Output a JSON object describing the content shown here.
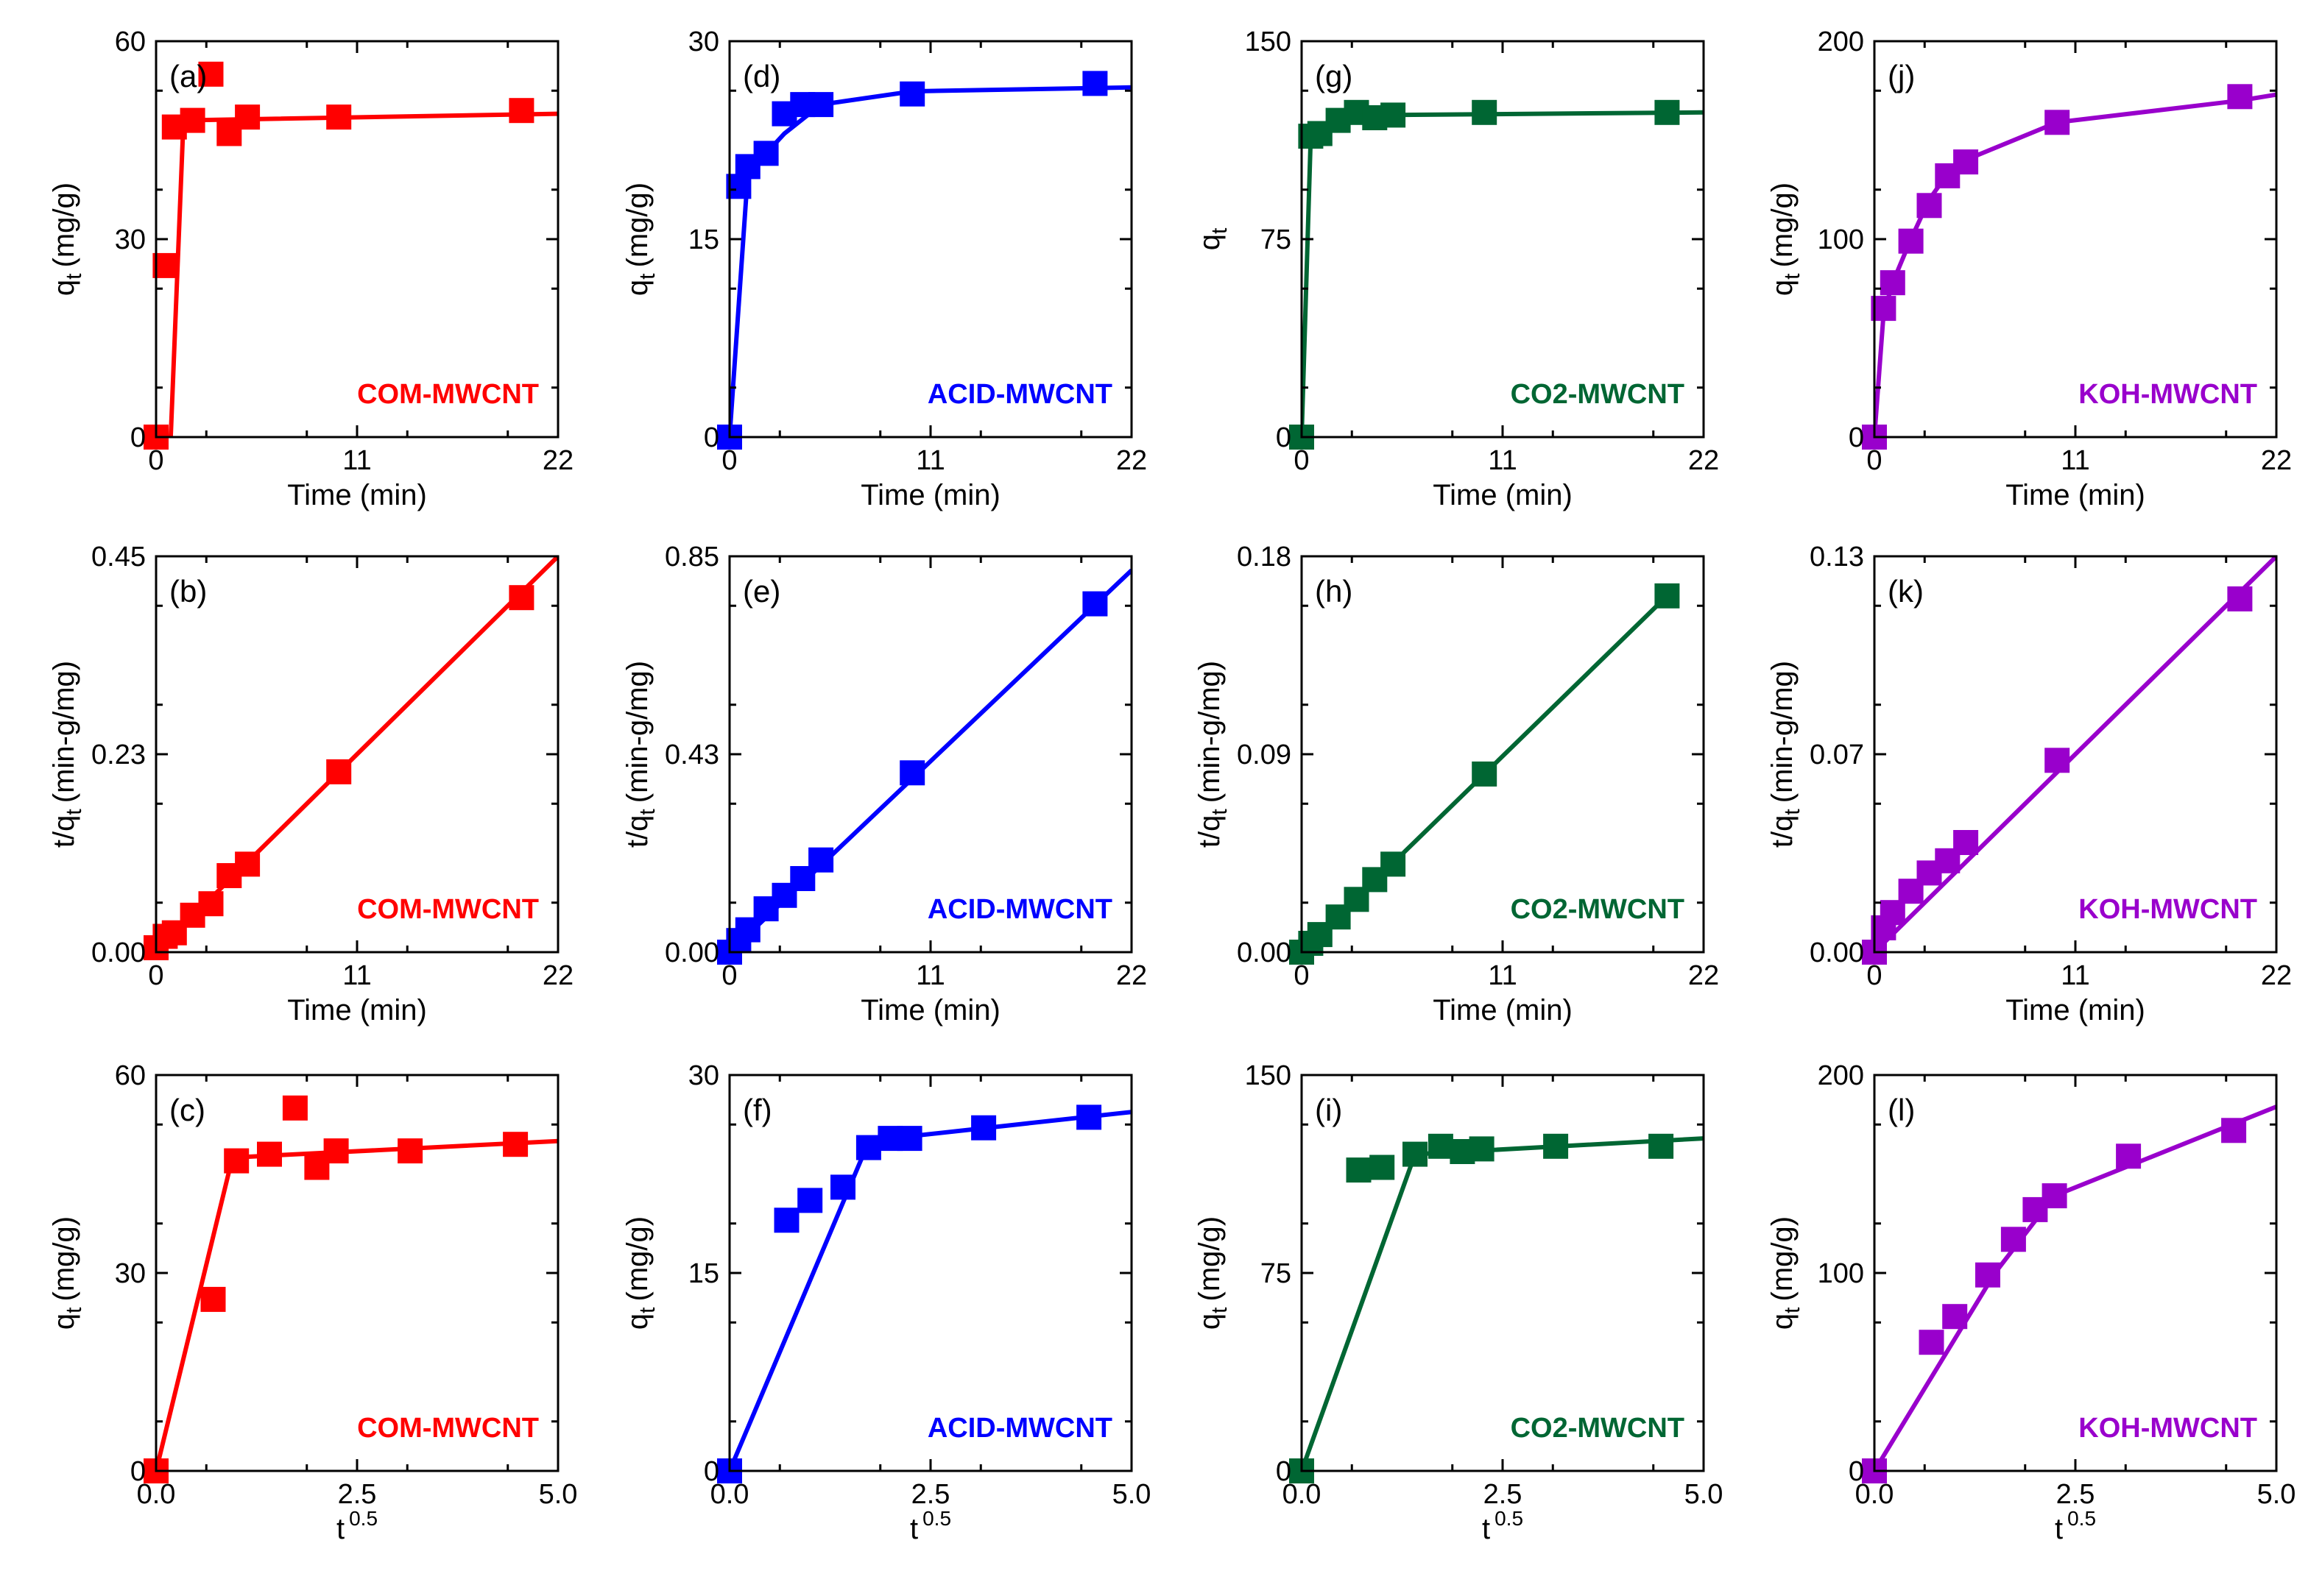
{
  "chart_data": [
    {
      "id": "a",
      "type": "scatter",
      "panel_label": "(a)",
      "series_label": "COM-MWCNT",
      "color": "#ff0000",
      "xlabel": "Time (min)",
      "ylabel": "q",
      "ylabel_sub": "t",
      "ylabel_unit": "(mg/g)",
      "xlim": [
        0,
        22
      ],
      "ylim": [
        0,
        60
      ],
      "xticks": [
        "0",
        "11",
        "22"
      ],
      "yticks": [
        "0",
        "30",
        "60"
      ],
      "points": [
        [
          0,
          0
        ],
        [
          0.5,
          26
        ],
        [
          1,
          47
        ],
        [
          2,
          48
        ],
        [
          3,
          55
        ],
        [
          4,
          46
        ],
        [
          5,
          48.5
        ],
        [
          10,
          48.5
        ],
        [
          20,
          49.5
        ]
      ],
      "fit": [
        [
          0,
          0
        ],
        [
          0.8,
          0
        ],
        [
          1.5,
          48
        ],
        [
          22,
          49
        ]
      ]
    },
    {
      "id": "d",
      "type": "scatter",
      "panel_label": "(d)",
      "series_label": "ACID-MWCNT",
      "color": "#0000ff",
      "xlabel": "Time (min)",
      "ylabel": "q",
      "ylabel_sub": "t",
      "ylabel_unit": "(mg/g)",
      "xlim": [
        0,
        22
      ],
      "ylim": [
        0,
        30
      ],
      "xticks": [
        "0",
        "11",
        "22"
      ],
      "yticks": [
        "0",
        "15",
        "30"
      ],
      "points": [
        [
          0,
          0
        ],
        [
          0.5,
          19
        ],
        [
          1,
          20.5
        ],
        [
          2,
          21.5
        ],
        [
          3,
          24.5
        ],
        [
          4,
          25.2
        ],
        [
          5,
          25.2
        ],
        [
          10,
          26
        ],
        [
          20,
          26.8
        ]
      ],
      "fit": [
        [
          0,
          0
        ],
        [
          1,
          20
        ],
        [
          3,
          23
        ],
        [
          5,
          25.2
        ],
        [
          10,
          26.2
        ],
        [
          22,
          26.5
        ]
      ]
    },
    {
      "id": "g",
      "type": "scatter",
      "panel_label": "(g)",
      "series_label": "CO2-MWCNT",
      "color": "#006633",
      "xlabel": "Time (min)",
      "ylabel": "q",
      "ylabel_sub": "t",
      "ylabel_unit": "",
      "xlim": [
        0,
        22
      ],
      "ylim": [
        0,
        150
      ],
      "xticks": [
        "0",
        "11",
        "22"
      ],
      "yticks": [
        "0",
        "75",
        "150"
      ],
      "points": [
        [
          0,
          0
        ],
        [
          0.5,
          114
        ],
        [
          1,
          115
        ],
        [
          2,
          120
        ],
        [
          3,
          123
        ],
        [
          4,
          121
        ],
        [
          5,
          122
        ],
        [
          10,
          123
        ],
        [
          20,
          123
        ]
      ],
      "fit": [
        [
          0,
          0
        ],
        [
          0.5,
          114
        ],
        [
          2,
          118
        ],
        [
          4,
          122
        ],
        [
          22,
          123
        ]
      ]
    },
    {
      "id": "j",
      "type": "scatter",
      "panel_label": "(j)",
      "series_label": "KOH-MWCNT",
      "color": "#9900cc",
      "xlabel": "Time (min)",
      "ylabel": "q",
      "ylabel_sub": "t",
      "ylabel_unit": "(mg/g)",
      "xlim": [
        0,
        22
      ],
      "ylim": [
        0,
        200
      ],
      "xticks": [
        "0",
        "11",
        "22"
      ],
      "yticks": [
        "0",
        "100",
        "200"
      ],
      "points": [
        [
          0,
          0
        ],
        [
          0.5,
          65
        ],
        [
          1,
          78
        ],
        [
          2,
          99
        ],
        [
          3,
          117
        ],
        [
          4,
          132
        ],
        [
          5,
          139
        ],
        [
          10,
          159
        ],
        [
          20,
          172
        ]
      ],
      "fit": [
        [
          0,
          0
        ],
        [
          0.5,
          62
        ],
        [
          1,
          78
        ],
        [
          2,
          100
        ],
        [
          3,
          120
        ],
        [
          4,
          133
        ],
        [
          5,
          140
        ],
        [
          10,
          159
        ],
        [
          20,
          170
        ],
        [
          22,
          173
        ]
      ]
    },
    {
      "id": "b",
      "type": "scatter",
      "panel_label": "(b)",
      "series_label": "COM-MWCNT",
      "color": "#ff0000",
      "xlabel": "Time (min)",
      "ylabel": "t/q",
      "ylabel_sub": "t",
      "ylabel_unit": "(min-g/mg)",
      "xlim": [
        0,
        22
      ],
      "ylim": [
        0,
        0.45
      ],
      "xticks": [
        "0",
        "11",
        "22"
      ],
      "yticks": [
        "0.00",
        "0.23",
        "0.45"
      ],
      "points": [
        [
          0,
          0.005
        ],
        [
          0.5,
          0.018
        ],
        [
          1,
          0.022
        ],
        [
          2,
          0.042
        ],
        [
          3,
          0.055
        ],
        [
          4,
          0.087
        ],
        [
          5,
          0.1
        ],
        [
          10,
          0.205
        ],
        [
          20,
          0.403
        ]
      ],
      "fit": [
        [
          0,
          0
        ],
        [
          22,
          0.45
        ]
      ]
    },
    {
      "id": "e",
      "type": "scatter",
      "panel_label": "(e)",
      "series_label": "ACID-MWCNT",
      "color": "#0000ff",
      "xlabel": "Time (min)",
      "ylabel": "t/q",
      "ylabel_sub": "t",
      "ylabel_unit": "(min-g/mg)",
      "xlim": [
        0,
        22
      ],
      "ylim": [
        0,
        0.85
      ],
      "xticks": [
        "0",
        "11",
        "22"
      ],
      "yticks": [
        "0.00",
        "0.43",
        "0.85"
      ],
      "points": [
        [
          0,
          0.0
        ],
        [
          0.5,
          0.025
        ],
        [
          1,
          0.048
        ],
        [
          2,
          0.093
        ],
        [
          3,
          0.122
        ],
        [
          4,
          0.158
        ],
        [
          5,
          0.198
        ],
        [
          10,
          0.385
        ],
        [
          20,
          0.748
        ]
      ],
      "fit": [
        [
          0,
          0
        ],
        [
          22,
          0.82
        ]
      ]
    },
    {
      "id": "h",
      "type": "scatter",
      "panel_label": "(h)",
      "series_label": "CO2-MWCNT",
      "color": "#006633",
      "xlabel": "Time (min)",
      "ylabel": "t/q",
      "ylabel_sub": "t",
      "ylabel_unit": "(min-g/mg)",
      "xlim": [
        0,
        22
      ],
      "ylim": [
        0,
        0.18
      ],
      "xticks": [
        "0",
        "11",
        "22"
      ],
      "yticks": [
        "0.00",
        "0.09",
        "0.18"
      ],
      "points": [
        [
          0,
          0.0
        ],
        [
          0.5,
          0.004
        ],
        [
          1,
          0.008
        ],
        [
          2,
          0.016
        ],
        [
          3,
          0.024
        ],
        [
          4,
          0.033
        ],
        [
          5,
          0.04
        ],
        [
          10,
          0.081
        ],
        [
          20,
          0.162
        ]
      ],
      "fit": [
        [
          0,
          0
        ],
        [
          20,
          0.162
        ]
      ]
    },
    {
      "id": "k",
      "type": "scatter",
      "panel_label": "(k)",
      "series_label": "KOH-MWCNT",
      "color": "#9900cc",
      "xlabel": "Time (min)",
      "ylabel": "t/q",
      "ylabel_sub": "t",
      "ylabel_unit": "(min-g/mg)",
      "xlim": [
        0,
        22
      ],
      "ylim": [
        0,
        0.13
      ],
      "xticks": [
        "0",
        "11",
        "22"
      ],
      "yticks": [
        "0.00",
        "0.07",
        "0.13"
      ],
      "points": [
        [
          0,
          0.0
        ],
        [
          0.5,
          0.008
        ],
        [
          1,
          0.013
        ],
        [
          2,
          0.02
        ],
        [
          3,
          0.026
        ],
        [
          4,
          0.03
        ],
        [
          5,
          0.036
        ],
        [
          10,
          0.063
        ],
        [
          20,
          0.116
        ]
      ],
      "fit": [
        [
          0,
          0
        ],
        [
          22,
          0.13
        ]
      ]
    },
    {
      "id": "c",
      "type": "scatter",
      "panel_label": "(c)",
      "series_label": "COM-MWCNT",
      "color": "#ff0000",
      "xlabel": "t",
      "xlabel_sup": "0.5",
      "ylabel": "q",
      "ylabel_sub": "t",
      "ylabel_unit": "(mg/g)",
      "xlim": [
        0,
        5
      ],
      "ylim": [
        0,
        60
      ],
      "xticks": [
        "0.0",
        "2.5",
        "5.0"
      ],
      "yticks": [
        "0",
        "30",
        "60"
      ],
      "points": [
        [
          0,
          0
        ],
        [
          0.71,
          26
        ],
        [
          1,
          47
        ],
        [
          1.41,
          48
        ],
        [
          1.73,
          55
        ],
        [
          2,
          46
        ],
        [
          2.24,
          48.5
        ],
        [
          3.16,
          48.5
        ],
        [
          4.47,
          49.5
        ]
      ],
      "fit": [
        [
          0,
          0
        ],
        [
          0.95,
          47.5
        ],
        [
          5,
          50
        ]
      ]
    },
    {
      "id": "f",
      "type": "scatter",
      "panel_label": "(f)",
      "series_label": "ACID-MWCNT",
      "color": "#0000ff",
      "xlabel": "t",
      "xlabel_sup": "0.5",
      "ylabel": "q",
      "ylabel_sub": "t",
      "ylabel_unit": "(mg/g)",
      "xlim": [
        0,
        5
      ],
      "ylim": [
        0,
        30
      ],
      "xticks": [
        "0.0",
        "2.5",
        "5.0"
      ],
      "yticks": [
        "0",
        "15",
        "30"
      ],
      "points": [
        [
          0,
          0
        ],
        [
          0.71,
          19
        ],
        [
          1,
          20.5
        ],
        [
          1.41,
          21.5
        ],
        [
          1.73,
          24.5
        ],
        [
          2,
          25.2
        ],
        [
          2.24,
          25.2
        ],
        [
          3.16,
          26
        ],
        [
          4.47,
          26.8
        ]
      ],
      "fit": [
        [
          0,
          0
        ],
        [
          1.7,
          24.5
        ],
        [
          2,
          25.2
        ],
        [
          5,
          27.2
        ]
      ]
    },
    {
      "id": "i",
      "type": "scatter",
      "panel_label": "(i)",
      "series_label": "CO2-MWCNT",
      "color": "#006633",
      "xlabel": "t",
      "xlabel_sup": "0.5",
      "ylabel": "q",
      "ylabel_sub": "t",
      "ylabel_unit": "(mg/g)",
      "xlim": [
        0,
        5
      ],
      "ylim": [
        0,
        150
      ],
      "xticks": [
        "0.0",
        "2.5",
        "5.0"
      ],
      "yticks": [
        "0",
        "75",
        "150"
      ],
      "points": [
        [
          0,
          0
        ],
        [
          0.71,
          114
        ],
        [
          1,
          115
        ],
        [
          1.41,
          120
        ],
        [
          1.73,
          123
        ],
        [
          2,
          121
        ],
        [
          2.24,
          122
        ],
        [
          3.16,
          123
        ],
        [
          4.47,
          123
        ]
      ],
      "fit": [
        [
          0,
          0
        ],
        [
          1.41,
          120
        ],
        [
          5,
          126
        ]
      ]
    },
    {
      "id": "l",
      "type": "scatter",
      "panel_label": "(l)",
      "series_label": "KOH-MWCNT",
      "color": "#9900cc",
      "xlabel": "t",
      "xlabel_sup": "0.5",
      "ylabel": "q",
      "ylabel_sub": "t",
      "ylabel_unit": "(mg/g)",
      "xlim": [
        0,
        5
      ],
      "ylim": [
        0,
        200
      ],
      "xticks": [
        "0.0",
        "2.5",
        "5.0"
      ],
      "yticks": [
        "0",
        "100",
        "200"
      ],
      "points": [
        [
          0,
          0
        ],
        [
          0.71,
          65
        ],
        [
          1,
          78
        ],
        [
          1.41,
          99
        ],
        [
          1.73,
          117
        ],
        [
          2,
          132
        ],
        [
          2.24,
          139
        ],
        [
          3.16,
          159
        ],
        [
          4.47,
          172
        ]
      ],
      "fit": [
        [
          0,
          0
        ],
        [
          1.5,
          100
        ],
        [
          2.24,
          139
        ],
        [
          5,
          184
        ]
      ]
    }
  ]
}
